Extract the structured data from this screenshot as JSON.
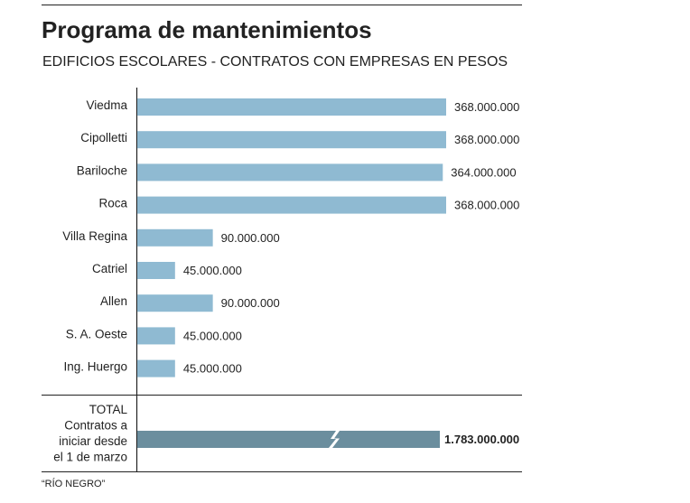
{
  "chart_data": {
    "type": "bar",
    "orientation": "horizontal",
    "title": "Programa de mantenimientos",
    "subtitle": "EDIFICIOS ESCOLARES - CONTRATOS CON EMPRESAS EN PESOS",
    "categories": [
      "Viedma",
      "Cipolletti",
      "Bariloche",
      "Roca",
      "Villa Regina",
      "Catriel",
      "Allen",
      "S. A. Oeste",
      "Ing. Huergo"
    ],
    "values": [
      368000000,
      368000000,
      364000000,
      368000000,
      90000000,
      45000000,
      90000000,
      45000000,
      45000000
    ],
    "value_labels": [
      "368.000.000",
      "368.000.000",
      "364.000.000",
      "368.000.000",
      "90.000.000",
      "45.000.000",
      "90.000.000",
      "45.000.000",
      "45.000.000"
    ],
    "xlim": [
      0,
      368000000
    ],
    "grid": false,
    "bar_color": "#8fbad2",
    "total": {
      "label_lines": [
        "TOTAL",
        "Contratos a",
        "iniciar desde",
        "el 1 de marzo"
      ],
      "value": 1783000000,
      "value_label": "1.783.000.000",
      "bar_color": "#6b8e9e",
      "broken_axis": true
    },
    "source": "“RÍO NEGRO”"
  }
}
